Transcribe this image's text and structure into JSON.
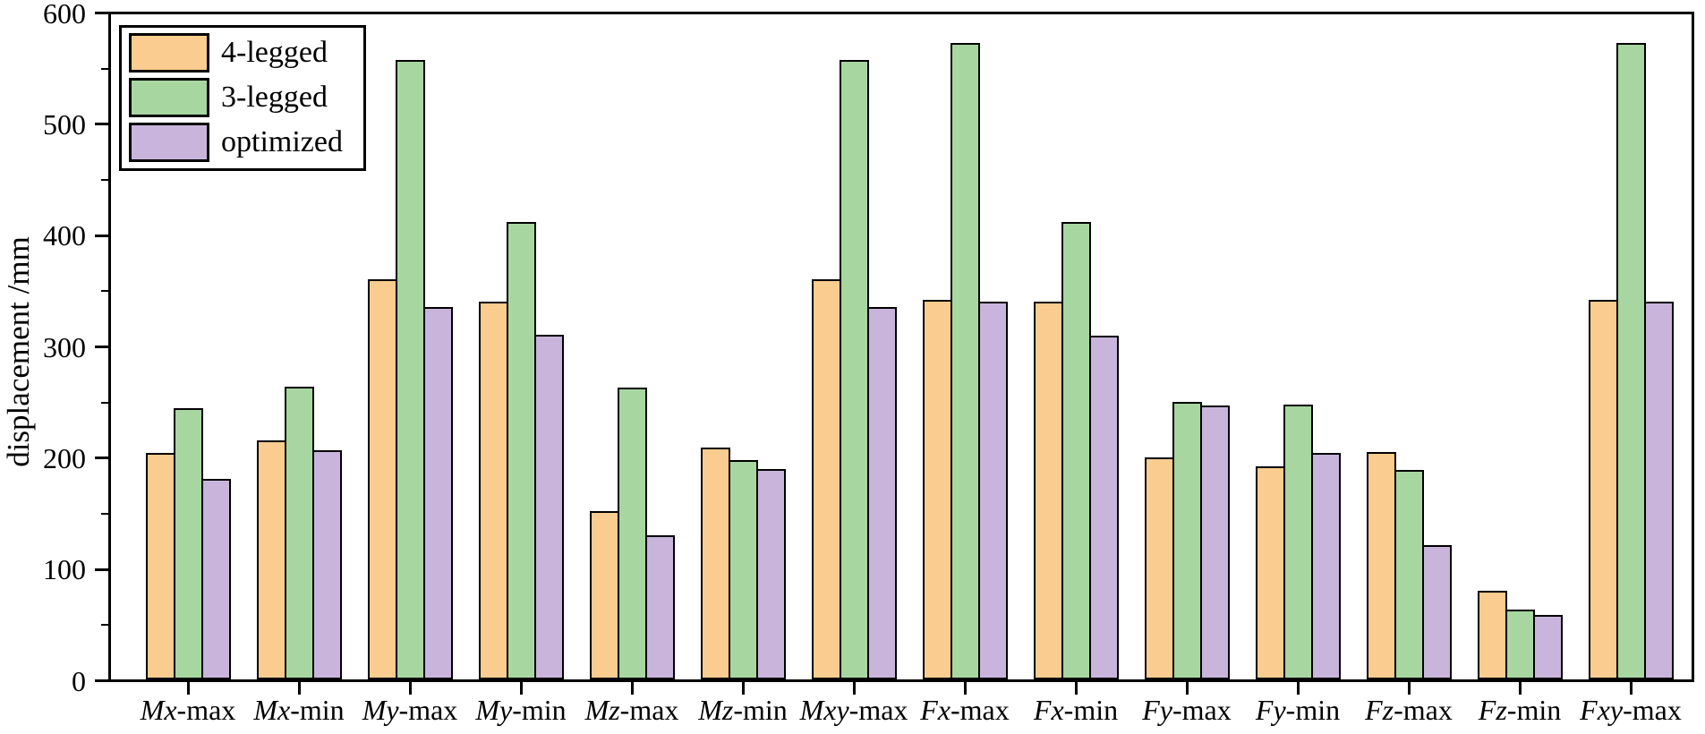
{
  "chart_data": {
    "type": "bar",
    "title": "",
    "xlabel": "",
    "ylabel": "displacement /mm",
    "ylim": [
      0,
      600
    ],
    "ytick_interval": 100,
    "yminor_interval": 50,
    "ytick_labels": [
      "0",
      "100",
      "200",
      "300",
      "400",
      "500",
      "600"
    ],
    "grid": false,
    "legend_position": "top-left",
    "axis_color": "#000000",
    "plot_background": "#ffffff",
    "categories": [
      "Mx-max",
      "Mx-min",
      "My-max",
      "My-min",
      "Mz-max",
      "Mz-min",
      "Mxy-max",
      "Fx-max",
      "Fx-min",
      "Fy-max",
      "Fy-min",
      "Fz-max",
      "Fz-min",
      "Fxy-max"
    ],
    "categories_styled": [
      {
        "italic": "Mx",
        "roman": "-max"
      },
      {
        "italic": "Mx",
        "roman": "-min"
      },
      {
        "italic": "My",
        "roman": "-max"
      },
      {
        "italic": "My",
        "roman": "-min"
      },
      {
        "italic": "Mz",
        "roman": "-max"
      },
      {
        "italic": "Mz",
        "roman": "-min"
      },
      {
        "italic": "Mxy",
        "roman": "-max"
      },
      {
        "italic": "Fx",
        "roman": "-max"
      },
      {
        "italic": "Fx",
        "roman": "-min"
      },
      {
        "italic": "Fy",
        "roman": "-max"
      },
      {
        "italic": "Fy",
        "roman": "-min"
      },
      {
        "italic": "Fz",
        "roman": "-max"
      },
      {
        "italic": "Fz",
        "roman": "-min"
      },
      {
        "italic": "Fxy",
        "roman": "-max"
      }
    ],
    "series": [
      {
        "name": "4-legged",
        "color": "#FACC8F",
        "values": [
          204,
          216,
          361,
          341,
          152,
          209,
          361,
          342,
          341,
          200,
          192,
          205,
          80,
          342
        ]
      },
      {
        "name": "3-legged",
        "color": "#A7D6A1",
        "values": [
          245,
          264,
          559,
          413,
          263,
          198,
          559,
          574,
          413,
          250,
          248,
          189,
          63,
          574
        ]
      },
      {
        "name": "optimized",
        "color": "#C9B5DC",
        "values": [
          181,
          207,
          336,
          311,
          130,
          190,
          336,
          341,
          310,
          247,
          204,
          121,
          58,
          341
        ]
      }
    ]
  }
}
